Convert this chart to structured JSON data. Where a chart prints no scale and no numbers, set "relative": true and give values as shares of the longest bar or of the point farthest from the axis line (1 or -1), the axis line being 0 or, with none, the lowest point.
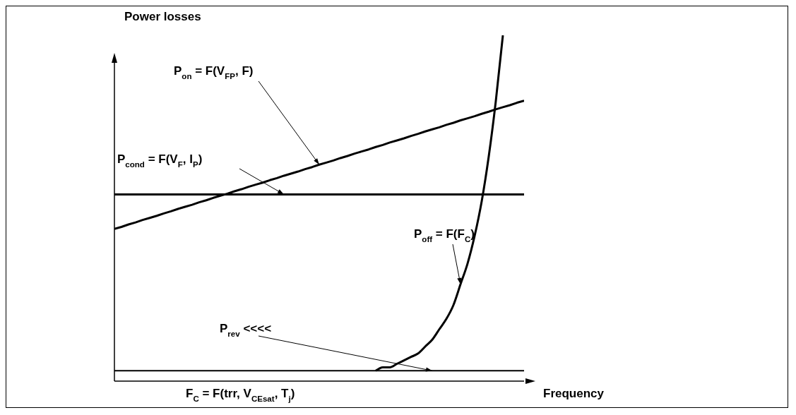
{
  "chart_data": {
    "type": "line",
    "relative": true,
    "ylabel": "Power losses",
    "xlabel": "Frequency",
    "legend": false,
    "grid": false,
    "marker": "none",
    "line_style": "solid",
    "annotations": [
      "F$_{C}$ = F(trr, V$_{CEsat}$, T$_{j}$)"
    ],
    "categories": [
      null,
      null,
      null,
      null,
      null,
      null,
      null,
      null,
      null,
      null,
      null,
      null,
      null,
      null,
      null,
      null,
      null,
      null,
      null,
      null,
      null,
      null,
      null,
      null,
      null,
      null,
      null,
      null,
      null,
      null,
      null,
      null,
      null,
      null,
      null,
      null,
      null,
      null,
      null,
      null,
      null,
      null,
      null,
      null,
      null,
      null,
      null,
      null,
      null,
      null,
      null,
      null,
      null,
      null,
      null,
      null,
      null,
      null,
      null
    ],
    "series": [
      {
        "name": "P$_{on}$ = F(V$_{FP}$, F)",
        "color": "#000000",
        "values": [
          0.44,
          0.446,
          0.453,
          0.459,
          0.466,
          0.472,
          0.478,
          0.485,
          0.491,
          0.498,
          0.504,
          0.51,
          0.517,
          0.523,
          0.53,
          0.536,
          0.542,
          0.549,
          0.555,
          0.562,
          0.568,
          0.574,
          0.581,
          0.587,
          0.594,
          0.6,
          0.606,
          0.613,
          0.619,
          0.626,
          0.632,
          0.638,
          0.645,
          0.651,
          0.658,
          0.664,
          0.67,
          0.677,
          0.683,
          0.69,
          0.696,
          0.702,
          0.709,
          0.715,
          0.722,
          0.728,
          0.734,
          0.741,
          0.747,
          0.754,
          0.76,
          0.766,
          0.773,
          0.779,
          0.786,
          0.792,
          0.798,
          0.805,
          0.811
        ]
      },
      {
        "name": "P$_{cond}$ = F(V$_{F}$, I$_{P}$)",
        "color": "#000000",
        "values": [
          0.54,
          0.54,
          0.54,
          0.54,
          0.54,
          0.54,
          0.54,
          0.54,
          0.54,
          0.54,
          0.54,
          0.54,
          0.54,
          0.54,
          0.54,
          0.54,
          0.54,
          0.54,
          0.54,
          0.54,
          0.54,
          0.54,
          0.54,
          0.54,
          0.54,
          0.54,
          0.54,
          0.54,
          0.54,
          0.54,
          0.54,
          0.54,
          0.54,
          0.54,
          0.54,
          0.54,
          0.54,
          0.54,
          0.54,
          0.54,
          0.54,
          0.54,
          0.54,
          0.54,
          0.54,
          0.54,
          0.54,
          0.54,
          0.54,
          0.54,
          0.54,
          0.54,
          0.54,
          0.54,
          0.54,
          0.54,
          0.54,
          0.54,
          0.54
        ]
      },
      {
        "name": "P$_{off}$ = F(F$_{C}$)",
        "color": "#000000",
        "values": [
          null,
          null,
          null,
          null,
          null,
          null,
          null,
          null,
          null,
          null,
          null,
          null,
          null,
          null,
          null,
          null,
          null,
          null,
          null,
          null,
          null,
          null,
          null,
          null,
          null,
          null,
          null,
          null,
          null,
          null,
          null,
          null,
          null,
          null,
          null,
          null,
          null,
          0.03,
          0.04,
          0.04,
          0.05,
          0.06,
          0.07,
          0.08,
          0.1,
          0.12,
          0.15,
          0.18,
          0.22,
          0.28,
          0.34,
          0.42,
          0.52,
          0.65,
          0.81,
          1,
          null,
          null,
          null
        ]
      },
      {
        "name": "P$_{rev}$ <<<<",
        "color": "#000000",
        "values": [
          0.03,
          0.03,
          0.03,
          0.03,
          0.03,
          0.03,
          0.03,
          0.03,
          0.03,
          0.03,
          0.03,
          0.03,
          0.03,
          0.03,
          0.03,
          0.03,
          0.03,
          0.03,
          0.03,
          0.03,
          0.03,
          0.03,
          0.03,
          0.03,
          0.03,
          0.03,
          0.03,
          0.03,
          0.03,
          0.03,
          0.03,
          0.03,
          0.03,
          0.03,
          0.03,
          0.03,
          0.03,
          0.03,
          0.03,
          0.03,
          0.03,
          0.03,
          0.03,
          0.03,
          0.03,
          0.03,
          0.03,
          0.03,
          0.03,
          0.03,
          0.03,
          0.03,
          0.03,
          0.03,
          0.03,
          0.03,
          0.03,
          0.03,
          0.03
        ]
      }
    ]
  }
}
